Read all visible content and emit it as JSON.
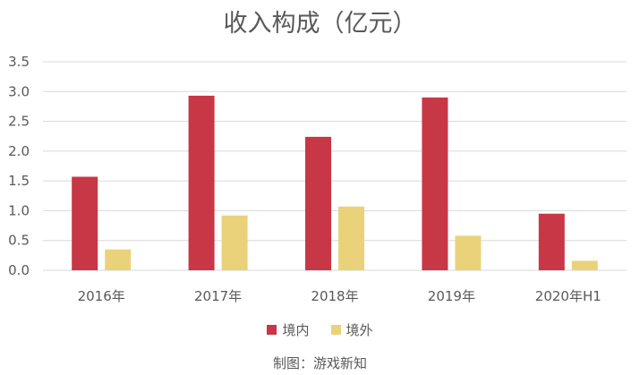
{
  "chart_data": {
    "type": "bar",
    "title": "收入构成（亿元）",
    "categories": [
      "2016年",
      "2017年",
      "2018年",
      "2019年",
      "2020年H1"
    ],
    "series": [
      {
        "name": "境内",
        "values": [
          1.57,
          2.93,
          2.24,
          2.9,
          0.95
        ],
        "color": "#C83745"
      },
      {
        "name": "境外",
        "values": [
          0.35,
          0.92,
          1.07,
          0.58,
          0.16
        ],
        "color": "#EAD27A"
      }
    ],
    "ylim": [
      0,
      3.5
    ],
    "yticks": [
      "0.0",
      "0.5",
      "1.0",
      "1.5",
      "2.0",
      "2.5",
      "3.0",
      "3.5"
    ],
    "grid": true,
    "legend_position": "bottom"
  },
  "source": "制图：游戏新知"
}
